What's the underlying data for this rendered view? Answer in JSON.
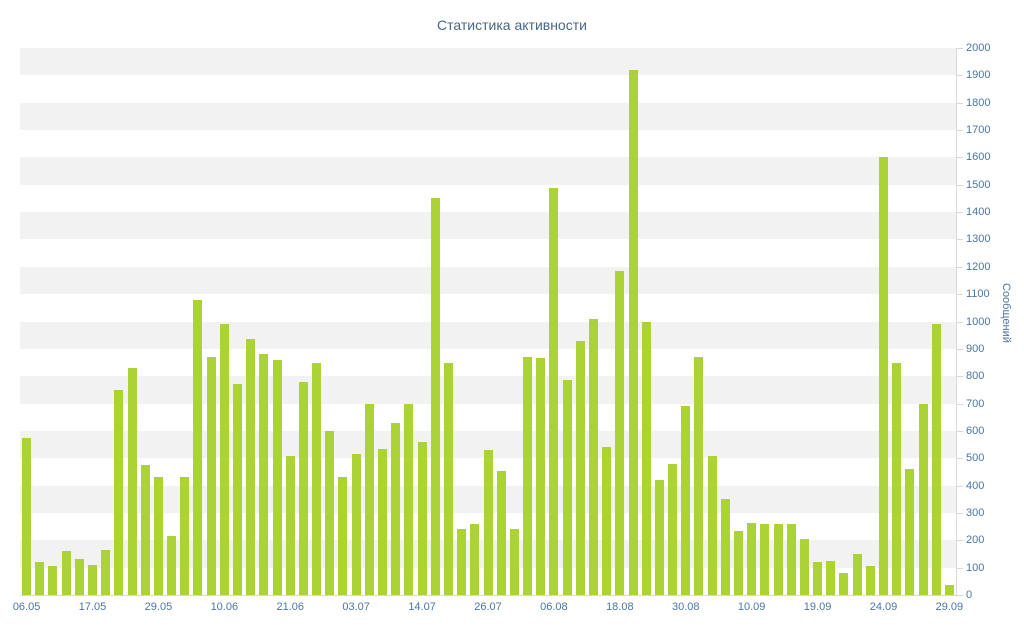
{
  "chart_data": {
    "type": "bar",
    "title": "Статистика активности",
    "xlabel": "",
    "ylabel": "Сообщений",
    "ylim": [
      0,
      2000
    ],
    "y_tick_step": 100,
    "grid": "horizontal-bands",
    "legend": "off",
    "bands": {
      "start": 100,
      "step": 200,
      "span": 100
    },
    "x_tick_every": 5,
    "x_tick_labels": [
      "06.05",
      "17.05",
      "29.05",
      "10.06",
      "21.06",
      "03.07",
      "14.07",
      "26.07",
      "06.08",
      "18.08",
      "30.08",
      "10.09",
      "19.09",
      "24.09",
      "29.09"
    ],
    "values": [
      575,
      120,
      105,
      160,
      130,
      110,
      165,
      750,
      830,
      475,
      430,
      215,
      430,
      1080,
      870,
      990,
      770,
      935,
      880,
      860,
      510,
      780,
      850,
      600,
      430,
      515,
      700,
      535,
      630,
      700,
      560,
      1450,
      850,
      240,
      260,
      530,
      455,
      240,
      870,
      865,
      1490,
      785,
      930,
      1010,
      540,
      1185,
      1920,
      1000,
      420,
      480,
      690,
      870,
      510,
      350,
      235,
      265,
      260,
      260,
      260,
      205,
      120,
      125,
      80,
      150,
      105,
      1600,
      850,
      460,
      700,
      990,
      35
    ],
    "colors": {
      "bar": "#abd334",
      "band": "#f2f2f2",
      "axis": "#d8d8d8",
      "tick_label": "#4a76a4",
      "title": "#4a6785"
    }
  }
}
